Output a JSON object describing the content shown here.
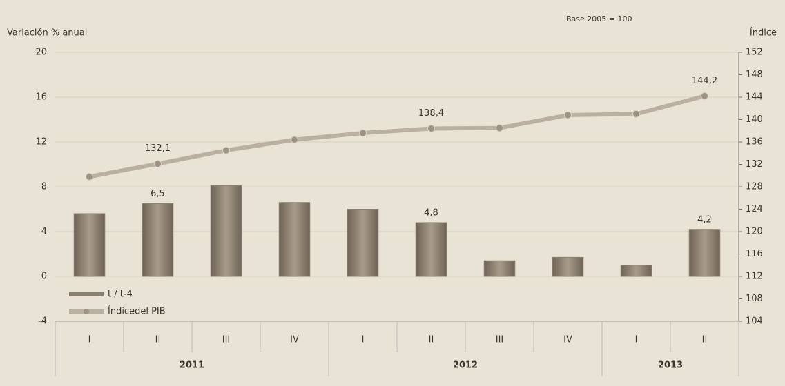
{
  "chart_data": {
    "type": "bar_line",
    "note": "Base 2005 = 100",
    "y_label": "Variación % anual",
    "y2_label": "Índice",
    "categories": [
      "I",
      "II",
      "III",
      "IV",
      "I",
      "II",
      "III",
      "IV",
      "I",
      "II"
    ],
    "groups": [
      "2011",
      "2012",
      "2013"
    ],
    "series": [
      {
        "name": "t / t-4",
        "type": "bar",
        "color": "#8a7e70",
        "values": [
          5.6,
          6.5,
          8.1,
          6.6,
          6.0,
          4.8,
          1.4,
          1.7,
          1.0,
          4.2
        ],
        "value_labels": [
          null,
          "6,5",
          null,
          null,
          null,
          "4,8",
          null,
          null,
          null,
          "4,2"
        ]
      },
      {
        "name": "Índicedel PIB",
        "type": "line",
        "axis": "y2",
        "color": "#b9b0a2",
        "values": [
          129.8,
          132.1,
          134.5,
          136.4,
          137.6,
          138.4,
          138.5,
          140.8,
          141.0,
          144.2
        ],
        "value_labels": [
          null,
          "132,1",
          null,
          null,
          null,
          "138,4",
          null,
          null,
          null,
          "144,2"
        ]
      }
    ],
    "ylim": [
      -4,
      20
    ],
    "yticks": [
      -4,
      0,
      4,
      8,
      12,
      16,
      20
    ],
    "y2lim": [
      104,
      152
    ],
    "y2ticks": [
      104,
      108,
      112,
      116,
      120,
      124,
      128,
      132,
      136,
      140,
      144,
      148,
      152
    ],
    "grid": true,
    "legend": "lower left"
  }
}
